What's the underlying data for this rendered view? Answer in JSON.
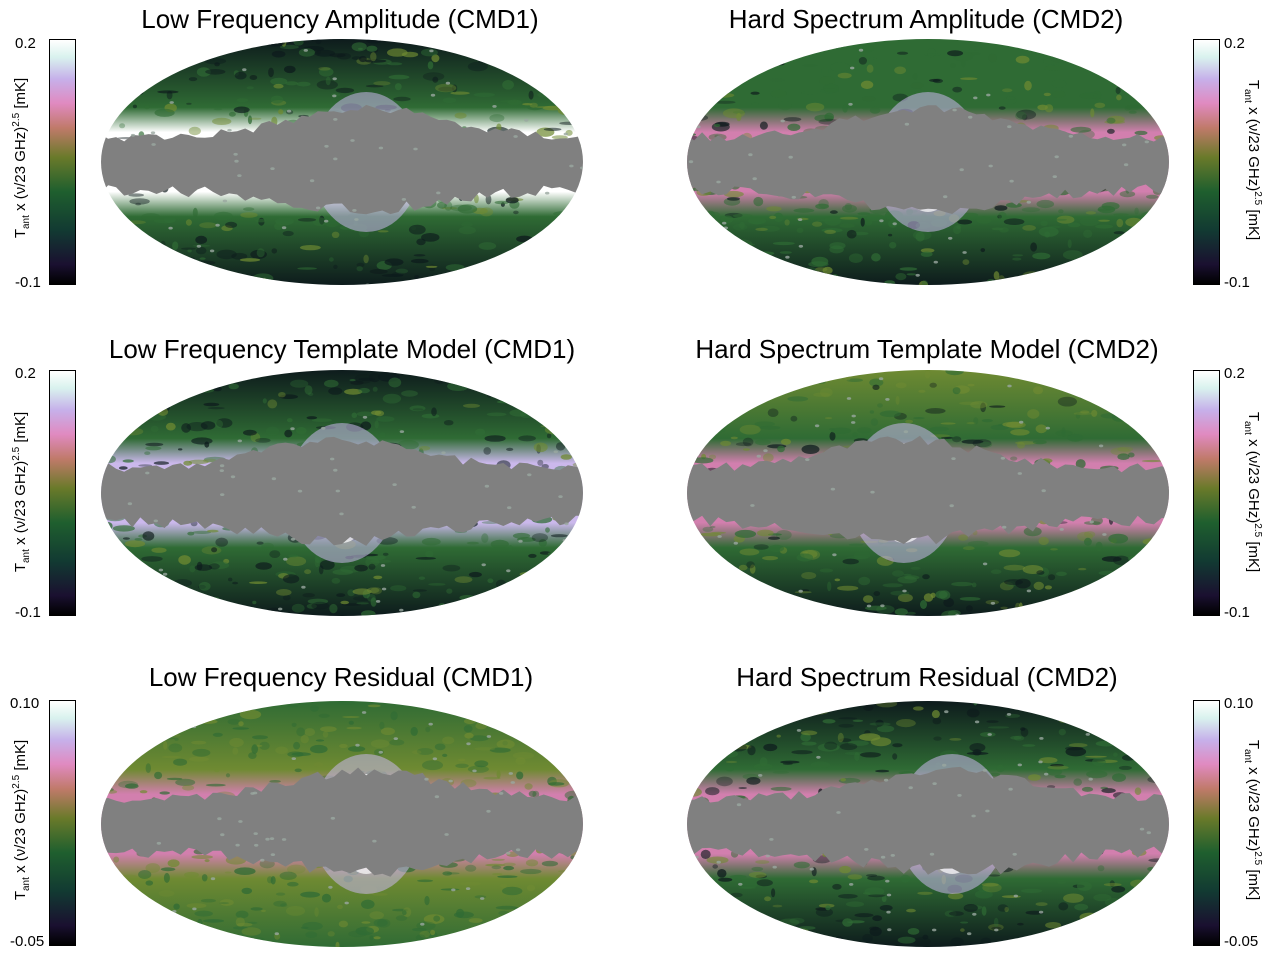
{
  "panels": [
    {
      "title": "Low Frequency Amplitude (CMD1)",
      "tick_max": "0.2",
      "tick_min": "-0.1"
    },
    {
      "title": "Hard Spectrum Amplitude (CMD2)",
      "tick_max": "0.2",
      "tick_min": "-0.1"
    },
    {
      "title": "Low Frequency Template Model (CMD1)",
      "tick_max": "0.2",
      "tick_min": "-0.1"
    },
    {
      "title": "Hard Spectrum Template Model (CMD2)",
      "tick_max": "0.2",
      "tick_min": "-0.1"
    },
    {
      "title": "Low Frequency Residual (CMD1)",
      "tick_max": "0.10",
      "tick_min": "-0.05"
    },
    {
      "title": "Hard Spectrum Residual (CMD2)",
      "tick_max": "0.10",
      "tick_min": "-0.05"
    }
  ],
  "colorbar_label": {
    "t": "T",
    "ant": "ant",
    "mid": " x (ν/23 GHz)",
    "exp": "2.5",
    "unit": " [mK]"
  },
  "colors": {
    "mask": "#808080",
    "dark": "#0d1a1c",
    "green": "#2f6b34",
    "olive": "#6f8a32",
    "pink": "#d27fae",
    "lavender": "#cbb8ec",
    "white": "#ffffff"
  }
}
